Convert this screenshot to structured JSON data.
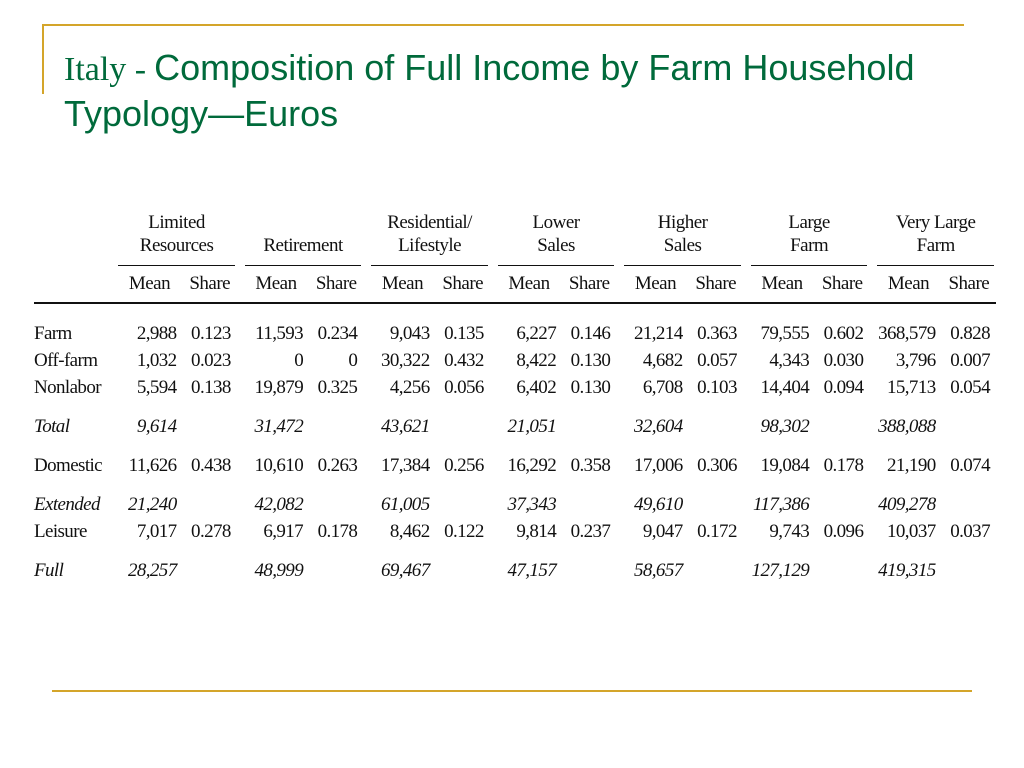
{
  "slide": {
    "title_country": "Italy -",
    "title_main": "Composition of Full Income by Farm Household Typology—Euros"
  },
  "table": {
    "groups": [
      {
        "line1": "Limited",
        "line2": "Resources"
      },
      {
        "line1": "",
        "line2": "Retirement"
      },
      {
        "line1": "Residential/",
        "line2": "Lifestyle"
      },
      {
        "line1": "Lower",
        "line2": "Sales"
      },
      {
        "line1": "Higher",
        "line2": "Sales"
      },
      {
        "line1": "Large",
        "line2": "Farm"
      },
      {
        "line1": "Very Large",
        "line2": "Farm"
      }
    ],
    "sub_mean": "Mean",
    "sub_share": "Share",
    "rows": [
      {
        "label": "Farm",
        "italic": false,
        "cells": [
          [
            "2,988",
            "0.123"
          ],
          [
            "11,593",
            "0.234"
          ],
          [
            "9,043",
            "0.135"
          ],
          [
            "6,227",
            "0.146"
          ],
          [
            "21,214",
            "0.363"
          ],
          [
            "79,555",
            "0.602"
          ],
          [
            "368,579",
            "0.828"
          ]
        ]
      },
      {
        "label": "Off-farm",
        "italic": false,
        "cells": [
          [
            "1,032",
            "0.023"
          ],
          [
            "0",
            "0"
          ],
          [
            "30,322",
            "0.432"
          ],
          [
            "8,422",
            "0.130"
          ],
          [
            "4,682",
            "0.057"
          ],
          [
            "4,343",
            "0.030"
          ],
          [
            "3,796",
            "0.007"
          ]
        ]
      },
      {
        "label": "Nonlabor",
        "italic": false,
        "cells": [
          [
            "5,594",
            "0.138"
          ],
          [
            "19,879",
            "0.325"
          ],
          [
            "4,256",
            "0.056"
          ],
          [
            "6,402",
            "0.130"
          ],
          [
            "6,708",
            "0.103"
          ],
          [
            "14,404",
            "0.094"
          ],
          [
            "15,713",
            "0.054"
          ]
        ]
      },
      {
        "label": "Total",
        "italic": true,
        "cells": [
          [
            "9,614",
            ""
          ],
          [
            "31,472",
            ""
          ],
          [
            "43,621",
            ""
          ],
          [
            "21,051",
            ""
          ],
          [
            "32,604",
            ""
          ],
          [
            "98,302",
            ""
          ],
          [
            "388,088",
            ""
          ]
        ]
      },
      {
        "label": "Domestic",
        "italic": false,
        "cells": [
          [
            "11,626",
            "0.438"
          ],
          [
            "10,610",
            "0.263"
          ],
          [
            "17,384",
            "0.256"
          ],
          [
            "16,292",
            "0.358"
          ],
          [
            "17,006",
            "0.306"
          ],
          [
            "19,084",
            "0.178"
          ],
          [
            "21,190",
            "0.074"
          ]
        ]
      },
      {
        "label": "Extended",
        "italic": true,
        "cells": [
          [
            "21,240",
            ""
          ],
          [
            "42,082",
            ""
          ],
          [
            "61,005",
            ""
          ],
          [
            "37,343",
            ""
          ],
          [
            "49,610",
            ""
          ],
          [
            "117,386",
            ""
          ],
          [
            "409,278",
            ""
          ]
        ]
      },
      {
        "label": "Leisure",
        "italic": false,
        "cells": [
          [
            "7,017",
            "0.278"
          ],
          [
            "6,917",
            "0.178"
          ],
          [
            "8,462",
            "0.122"
          ],
          [
            "9,814",
            "0.237"
          ],
          [
            "9,047",
            "0.172"
          ],
          [
            "9,743",
            "0.096"
          ],
          [
            "10,037",
            "0.037"
          ]
        ]
      },
      {
        "label": "Full",
        "italic": true,
        "cells": [
          [
            "28,257",
            ""
          ],
          [
            "48,999",
            ""
          ],
          [
            "69,467",
            ""
          ],
          [
            "47,157",
            ""
          ],
          [
            "58,657",
            ""
          ],
          [
            "127,129",
            ""
          ],
          [
            "419,315",
            ""
          ]
        ]
      }
    ]
  }
}
